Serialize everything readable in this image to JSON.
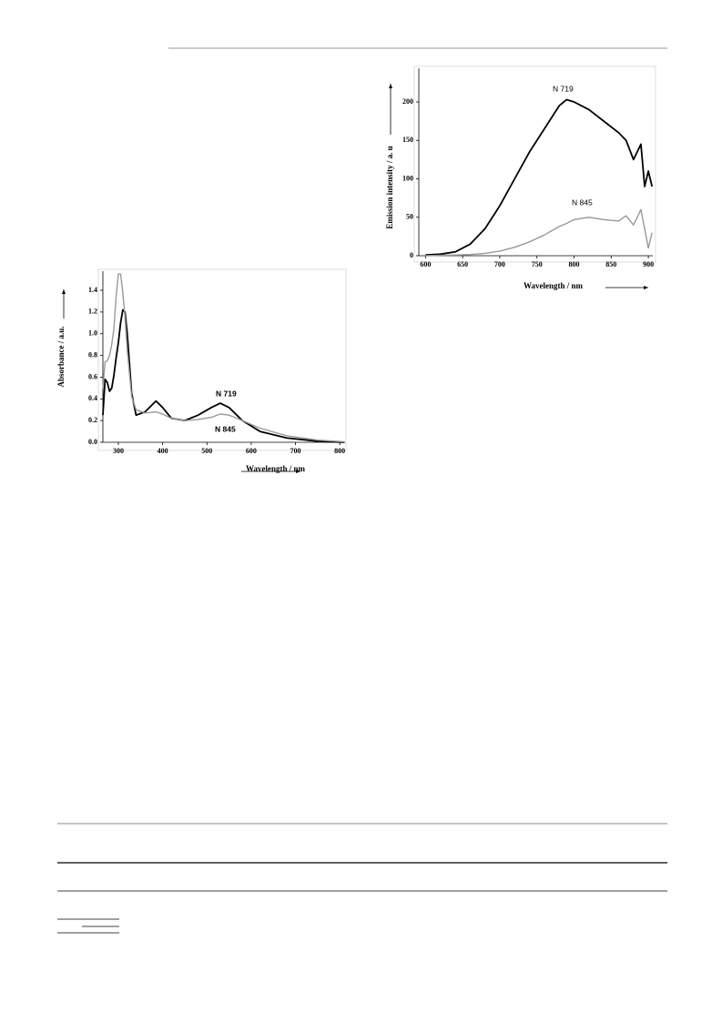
{
  "chart_data": [
    {
      "type": "line",
      "x_label": "Wavelength / nm",
      "y_label": "Absorbance / a.u.",
      "x": [
        265,
        270,
        275,
        280,
        285,
        290,
        295,
        300,
        305,
        310,
        315,
        320,
        330,
        340,
        360,
        385,
        400,
        420,
        450,
        480,
        510,
        530,
        550,
        580,
        620,
        680,
        750,
        810
      ],
      "series": [
        {
          "name": "N 719",
          "color": "#000000",
          "values": [
            0.25,
            0.58,
            0.55,
            0.47,
            0.5,
            0.62,
            0.78,
            0.92,
            1.1,
            1.22,
            1.2,
            1.0,
            0.45,
            0.25,
            0.28,
            0.38,
            0.32,
            0.22,
            0.2,
            0.25,
            0.32,
            0.36,
            0.32,
            0.2,
            0.1,
            0.04,
            0.01,
            0.0
          ]
        },
        {
          "name": "N 845",
          "color": "#999999",
          "values": [
            0.5,
            0.74,
            0.75,
            0.8,
            0.9,
            1.05,
            1.35,
            1.55,
            1.55,
            1.38,
            1.15,
            0.85,
            0.42,
            0.3,
            0.27,
            0.28,
            0.26,
            0.22,
            0.2,
            0.21,
            0.23,
            0.26,
            0.25,
            0.2,
            0.13,
            0.06,
            0.02,
            0.005
          ]
        }
      ],
      "xlim": [
        265,
        812
      ],
      "xticks": [
        300,
        400,
        500,
        600,
        700,
        800
      ],
      "ylim": [
        0,
        1.576
      ],
      "yticks": [
        {
          "value": 0,
          "label": "0.0"
        },
        0.2,
        0.4,
        0.6,
        0.8,
        {
          "value": 1,
          "label": "1.0"
        },
        1.2,
        1.4
      ]
    },
    {
      "type": "line",
      "x_label": "Wavelength / nm",
      "y_label": "Emission intensity / a. u",
      "x": [
        600,
        620,
        640,
        660,
        680,
        700,
        720,
        740,
        760,
        780,
        790,
        800,
        820,
        840,
        860,
        870,
        880,
        890,
        895,
        900,
        905
      ],
      "series": [
        {
          "name": "N 719",
          "color": "#000000",
          "values": [
            1,
            2,
            5,
            15,
            35,
            65,
            100,
            135,
            165,
            195,
            203,
            200,
            190,
            175,
            160,
            150,
            125,
            145,
            90,
            110,
            90
          ]
        },
        {
          "name": "N 845",
          "color": "#999999",
          "values": [
            0,
            0.5,
            1,
            1.5,
            3,
            6,
            11,
            18,
            27,
            38,
            42,
            47,
            50,
            47,
            45,
            52,
            40,
            60,
            35,
            10,
            30
          ]
        }
      ],
      "xlim": [
        591,
        906
      ],
      "xticks": [
        600,
        650,
        700,
        750,
        800,
        850,
        900
      ],
      "ylim": [
        0,
        243.8
      ],
      "yticks": [
        0,
        50,
        100,
        150,
        200
      ]
    }
  ]
}
